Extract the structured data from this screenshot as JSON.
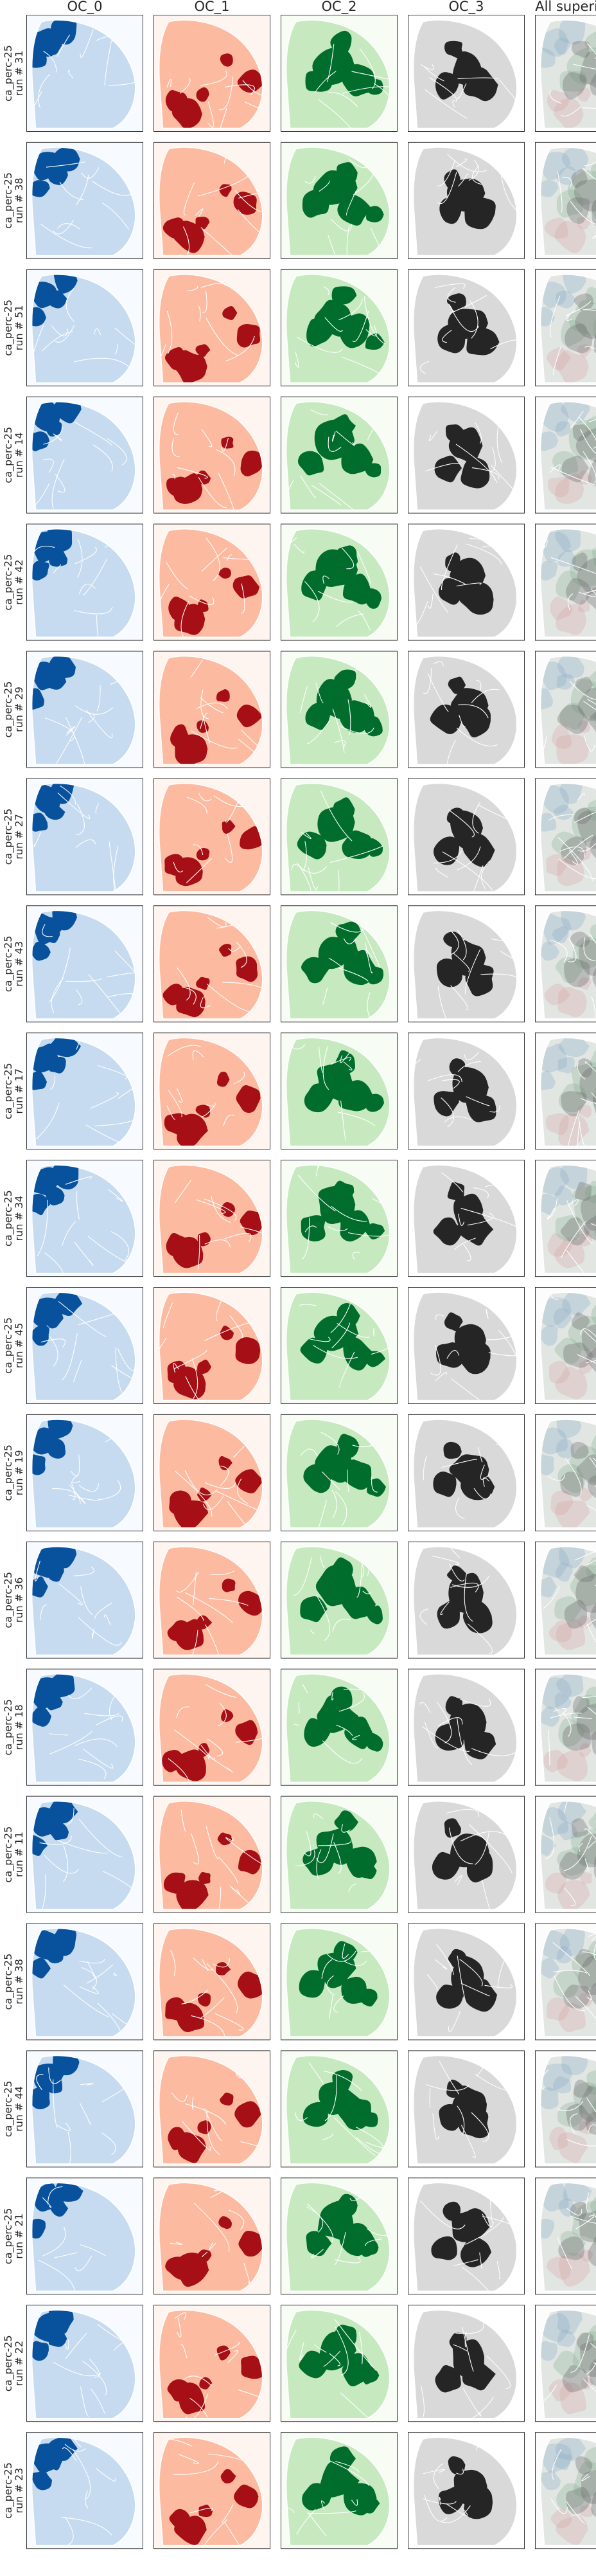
{
  "chart_data": {
    "type": "grid",
    "column_titles": [
      "OC_0",
      "OC_1",
      "OC_2",
      "OC_3",
      "All superimposed"
    ],
    "rows": [
      {
        "label_line1": "ca_perc-25",
        "label_line2": "run # 31"
      },
      {
        "label_line1": "ca_perc-25",
        "label_line2": "run # 38"
      },
      {
        "label_line1": "ca_perc-25",
        "label_line2": "run # 51"
      },
      {
        "label_line1": "ca_perc-25",
        "label_line2": "run # 14"
      },
      {
        "label_line1": "ca_perc-25",
        "label_line2": "run # 42"
      },
      {
        "label_line1": "ca_perc-25",
        "label_line2": "run # 29"
      },
      {
        "label_line1": "ca_perc-25",
        "label_line2": "run # 27"
      },
      {
        "label_line1": "ca_perc-25",
        "label_line2": "run # 43"
      },
      {
        "label_line1": "ca_perc-25",
        "label_line2": "run # 17"
      },
      {
        "label_line1": "ca_perc-25",
        "label_line2": "run # 34"
      },
      {
        "label_line1": "ca_perc-25",
        "label_line2": "run # 45"
      },
      {
        "label_line1": "ca_perc-25",
        "label_line2": "run # 19"
      },
      {
        "label_line1": "ca_perc-25",
        "label_line2": "run # 36"
      },
      {
        "label_line1": "ca_perc-25",
        "label_line2": "run # 18"
      },
      {
        "label_line1": "ca_perc-25",
        "label_line2": "run # 11"
      },
      {
        "label_line1": "ca_perc-25",
        "label_line2": "run # 38"
      },
      {
        "label_line1": "ca_perc-25",
        "label_line2": "run # 44"
      },
      {
        "label_line1": "ca_perc-25",
        "label_line2": "run # 21"
      },
      {
        "label_line1": "ca_perc-25",
        "label_line2": "run # 22"
      },
      {
        "label_line1": "ca_perc-25",
        "label_line2": "run # 23"
      }
    ],
    "colormaps": {
      "OC_0": {
        "background": "#f7fbff",
        "light": "#c6dbef",
        "dark": "#08519c"
      },
      "OC_1": {
        "background": "#fff5f0",
        "light": "#fcbba1",
        "dark": "#a50f15"
      },
      "OC_2": {
        "background": "#f7fcf5",
        "light": "#c7e9c0",
        "dark": "#006d2c"
      },
      "OC_3": {
        "background": "#ffffff",
        "light": "#d9d9d9",
        "dark": "#252525"
      },
      "All superimposed": {
        "background": "#fcfcfc",
        "light": "#e2e6e3",
        "dark": "#7d8a84"
      }
    },
    "xlabel": "",
    "ylabel": "",
    "grid": false,
    "legend": "none"
  }
}
